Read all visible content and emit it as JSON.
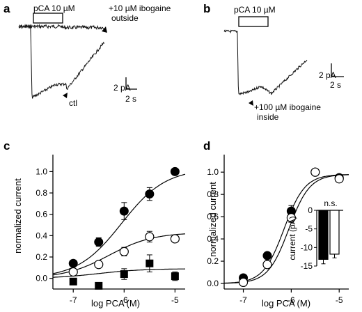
{
  "panels": {
    "a": {
      "label": "a",
      "pulse_label": "pCA 10 µM",
      "annot_top_line1": "+10 µM ibogaine",
      "annot_top_line2": "outside",
      "annot_ctl": "ctl",
      "scale_y": "2 pA",
      "scale_x": "2 s"
    },
    "b": {
      "label": "b",
      "pulse_label": "pCA 10 µM",
      "annot_line1": "+100 µM ibogaine",
      "annot_line2": "inside",
      "scale_y": "2 pA",
      "scale_x": "2 s"
    },
    "c": {
      "label": "c"
    },
    "d": {
      "label": "d"
    }
  },
  "chart_data": [
    {
      "panel": "c",
      "type": "scatter",
      "xlabel": "log PCA (M)",
      "ylabel": "normalized current",
      "xlim": [
        -7.4,
        -4.8
      ],
      "ylim": [
        -0.1,
        1.12
      ],
      "xticks": [
        -7,
        -6,
        -5
      ],
      "xticklabels": [
        "-7",
        "-6",
        "-5"
      ],
      "yticks": [
        0.0,
        0.2,
        0.4,
        0.6,
        0.8,
        1.0
      ],
      "yticklabels": [
        "0.0",
        "0.2",
        "0.4",
        "0.6",
        "0.8",
        "1.0"
      ],
      "series": [
        {
          "marker": "filled-circle",
          "x": [
            -7,
            -6.5,
            -6,
            -5.5,
            -5
          ],
          "y": [
            0.14,
            0.34,
            0.63,
            0.79,
            1.0
          ],
          "err": [
            0.02,
            0.04,
            0.08,
            0.06,
            0.02
          ]
        },
        {
          "marker": "open-circle",
          "x": [
            -7,
            -6.5,
            -6,
            -5.5,
            -5
          ],
          "y": [
            0.06,
            0.13,
            0.25,
            0.39,
            0.37
          ],
          "err": [
            0.02,
            0.03,
            0.04,
            0.05,
            0.02
          ]
        },
        {
          "marker": "filled-square",
          "x": [
            -7,
            -6.5,
            -6,
            -5.5,
            -5
          ],
          "y": [
            -0.03,
            -0.07,
            0.04,
            0.14,
            0.02
          ],
          "err": [
            0.02,
            0.03,
            0.05,
            0.08,
            0.04
          ]
        }
      ],
      "fits": [
        {
          "top": 1.03,
          "ec50": -6.05,
          "hill": 1.0
        },
        {
          "top": 0.43,
          "ec50": -6.3,
          "hill": 1.0
        },
        {
          "top": 0.09,
          "ec50": -6.5,
          "hill": 1.0
        }
      ]
    },
    {
      "panel": "d",
      "type": "scatter",
      "xlabel": "log PCA (M)",
      "ylabel": "normalized current",
      "xlim": [
        -7.4,
        -4.8
      ],
      "ylim": [
        -0.05,
        1.12
      ],
      "xticks": [
        -7,
        -6,
        -5
      ],
      "xticklabels": [
        "-7",
        "-6",
        "-5"
      ],
      "yticks": [
        0.0,
        0.2,
        0.4,
        0.6,
        0.8,
        1.0
      ],
      "yticklabels": [
        "0.0",
        "0.2",
        "0.4",
        "0.6",
        "0.8",
        "1.0"
      ],
      "series": [
        {
          "marker": "filled-circle",
          "x": [
            -7,
            -6.5,
            -6,
            -5.5,
            -5
          ],
          "y": [
            0.05,
            0.25,
            0.65,
            1.0,
            0.95
          ],
          "err": [
            0.02,
            0.03,
            0.05,
            0.02,
            0.02
          ]
        },
        {
          "marker": "open-circle",
          "x": [
            -7,
            -6.5,
            -6,
            -5.5,
            -5
          ],
          "y": [
            0.01,
            0.17,
            0.59,
            1.0,
            0.94
          ],
          "err": [
            0.02,
            0.03,
            0.04,
            0.02,
            0.02
          ]
        }
      ],
      "fits": [
        {
          "top": 0.98,
          "ec50": -6.15,
          "hill": 2.0
        },
        {
          "top": 0.98,
          "ec50": -6.05,
          "hill": 2.0
        }
      ],
      "inset": {
        "type": "bar",
        "ylabel": "current (pA)",
        "ylim": [
          0,
          -15
        ],
        "yticks": [
          0,
          -5,
          -10,
          -15
        ],
        "yticklabels": [
          "0",
          "-5",
          "-10",
          "-15"
        ],
        "bars": [
          {
            "fill": "black",
            "value": -13.2,
            "err": 1.2
          },
          {
            "fill": "white",
            "value": -11.8,
            "err": 1.0
          }
        ],
        "annotation": "n.s."
      }
    }
  ]
}
